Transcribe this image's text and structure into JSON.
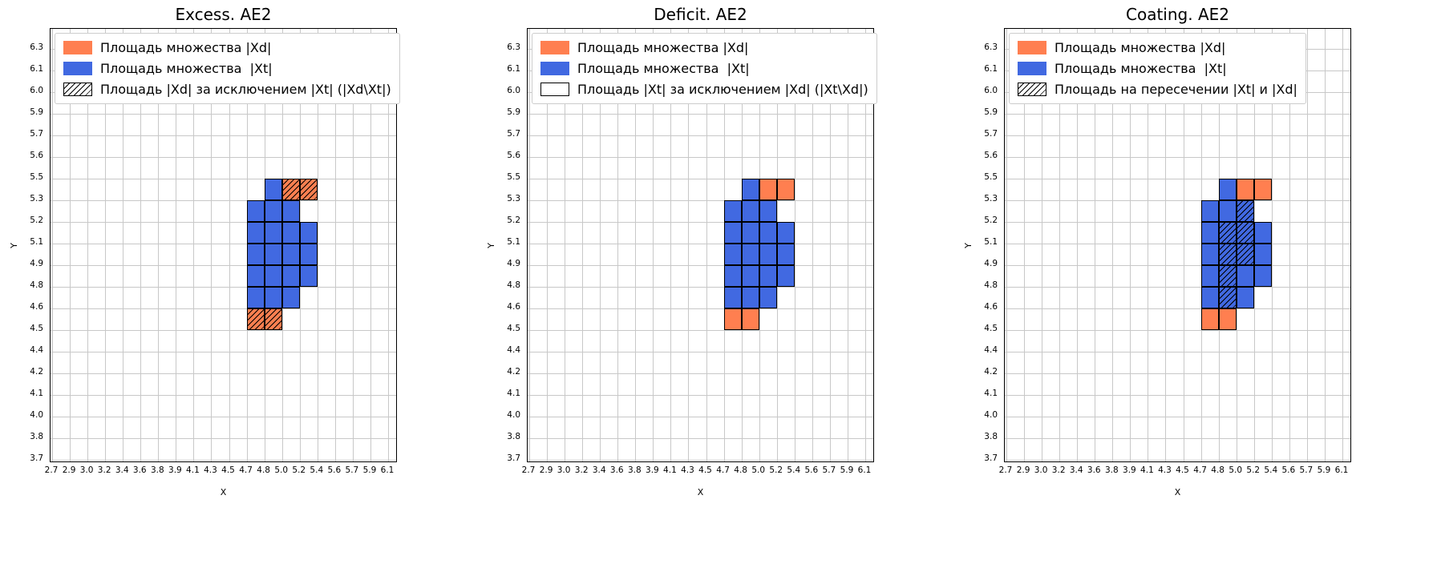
{
  "colors": {
    "xd_orange": "#FF7F50",
    "xt_blue": "#4169E1",
    "grid": "#c8c8c8",
    "cell_edge": "#000000"
  },
  "chart_data": {
    "type": "heatmap",
    "description": "Three set-coverage grid plots comparing set Xd (orange) and set Xt (blue) on a quantized X-Y grid",
    "shared": {
      "xlabel": "X",
      "ylabel": "Y",
      "x_ticks": [
        "2.7",
        "2.9",
        "3.0",
        "3.2",
        "3.4",
        "3.6",
        "3.8",
        "3.9",
        "4.1",
        "4.3",
        "4.5",
        "4.7",
        "4.8",
        "5.0",
        "5.2",
        "5.4",
        "5.6",
        "5.7",
        "5.9",
        "6.1"
      ],
      "y_ticks": [
        "6.3",
        "6.1",
        "6.0",
        "5.9",
        "5.7",
        "5.6",
        "5.5",
        "5.3",
        "5.2",
        "5.1",
        "4.9",
        "4.8",
        "4.6",
        "4.5",
        "4.4",
        "4.2",
        "4.1",
        "4.0",
        "3.8",
        "3.7"
      ],
      "grid": true,
      "legend_position": "upper-left",
      "xt_cells": [
        {
          "x": [
            "4.8",
            "5.0"
          ],
          "y": [
            "5.3",
            "5.5"
          ]
        },
        {
          "x": [
            "4.7",
            "4.8"
          ],
          "y": [
            "5.2",
            "5.3"
          ]
        },
        {
          "x": [
            "4.8",
            "5.0"
          ],
          "y": [
            "5.2",
            "5.3"
          ]
        },
        {
          "x": [
            "5.0",
            "5.2"
          ],
          "y": [
            "5.2",
            "5.3"
          ]
        },
        {
          "x": [
            "4.7",
            "4.8"
          ],
          "y": [
            "5.1",
            "5.2"
          ]
        },
        {
          "x": [
            "4.8",
            "5.0"
          ],
          "y": [
            "5.1",
            "5.2"
          ]
        },
        {
          "x": [
            "5.0",
            "5.2"
          ],
          "y": [
            "5.1",
            "5.2"
          ]
        },
        {
          "x": [
            "5.2",
            "5.4"
          ],
          "y": [
            "5.1",
            "5.2"
          ]
        },
        {
          "x": [
            "4.7",
            "4.8"
          ],
          "y": [
            "4.9",
            "5.1"
          ]
        },
        {
          "x": [
            "4.8",
            "5.0"
          ],
          "y": [
            "4.9",
            "5.1"
          ]
        },
        {
          "x": [
            "5.0",
            "5.2"
          ],
          "y": [
            "4.9",
            "5.1"
          ]
        },
        {
          "x": [
            "5.2",
            "5.4"
          ],
          "y": [
            "4.9",
            "5.1"
          ]
        },
        {
          "x": [
            "4.7",
            "4.8"
          ],
          "y": [
            "4.8",
            "4.9"
          ]
        },
        {
          "x": [
            "4.8",
            "5.0"
          ],
          "y": [
            "4.8",
            "4.9"
          ]
        },
        {
          "x": [
            "5.0",
            "5.2"
          ],
          "y": [
            "4.8",
            "4.9"
          ]
        },
        {
          "x": [
            "5.2",
            "5.4"
          ],
          "y": [
            "4.8",
            "4.9"
          ]
        },
        {
          "x": [
            "4.7",
            "4.8"
          ],
          "y": [
            "4.6",
            "4.8"
          ]
        },
        {
          "x": [
            "4.8",
            "5.0"
          ],
          "y": [
            "4.6",
            "4.8"
          ]
        },
        {
          "x": [
            "5.0",
            "5.2"
          ],
          "y": [
            "4.6",
            "4.8"
          ]
        }
      ],
      "xd_only_cells": [
        {
          "x": [
            "5.0",
            "5.2"
          ],
          "y": [
            "5.3",
            "5.5"
          ]
        },
        {
          "x": [
            "5.2",
            "5.4"
          ],
          "y": [
            "5.3",
            "5.5"
          ]
        },
        {
          "x": [
            "4.7",
            "4.8"
          ],
          "y": [
            "4.5",
            "4.6"
          ]
        },
        {
          "x": [
            "4.8",
            "5.0"
          ],
          "y": [
            "4.5",
            "4.6"
          ]
        }
      ],
      "xt_xd_intersection_cells": [
        {
          "x": [
            "5.0",
            "5.2"
          ],
          "y": [
            "5.2",
            "5.3"
          ]
        },
        {
          "x": [
            "4.8",
            "5.0"
          ],
          "y": [
            "5.1",
            "5.2"
          ]
        },
        {
          "x": [
            "5.0",
            "5.2"
          ],
          "y": [
            "5.1",
            "5.2"
          ]
        },
        {
          "x": [
            "4.8",
            "5.0"
          ],
          "y": [
            "4.9",
            "5.1"
          ]
        },
        {
          "x": [
            "5.0",
            "5.2"
          ],
          "y": [
            "4.9",
            "5.1"
          ]
        },
        {
          "x": [
            "4.8",
            "5.0"
          ],
          "y": [
            "4.8",
            "4.9"
          ]
        },
        {
          "x": [
            "4.8",
            "5.0"
          ],
          "y": [
            "4.6",
            "4.8"
          ]
        }
      ]
    },
    "plots": [
      {
        "title": "Excess. AE2",
        "hatch_on": "xd_only",
        "legend": [
          {
            "label": "Площадь множества |Xd|",
            "swatch": "xd"
          },
          {
            "label": "Площадь множества  |Xt|",
            "swatch": "xt"
          },
          {
            "label": "Площадь |Xd| за исключением |Xt| (|Xd\\Xt|)",
            "swatch": "hatch"
          }
        ]
      },
      {
        "title": "Deficit. AE2",
        "hatch_on": "none",
        "legend": [
          {
            "label": "Площадь множества |Xd|",
            "swatch": "xd"
          },
          {
            "label": "Площадь множества  |Xt|",
            "swatch": "xt"
          },
          {
            "label": "Площадь |Xt| за исключением |Xd| (|Xt\\Xd|)",
            "swatch": "empty"
          }
        ]
      },
      {
        "title": "Coating. AE2",
        "hatch_on": "intersection",
        "legend": [
          {
            "label": "Площадь множества |Xd|",
            "swatch": "xd"
          },
          {
            "label": "Площадь множества  |Xt|",
            "swatch": "xt"
          },
          {
            "label": "Площадь на пересечении |Xt| и |Xd|",
            "swatch": "hatch"
          }
        ]
      }
    ]
  }
}
